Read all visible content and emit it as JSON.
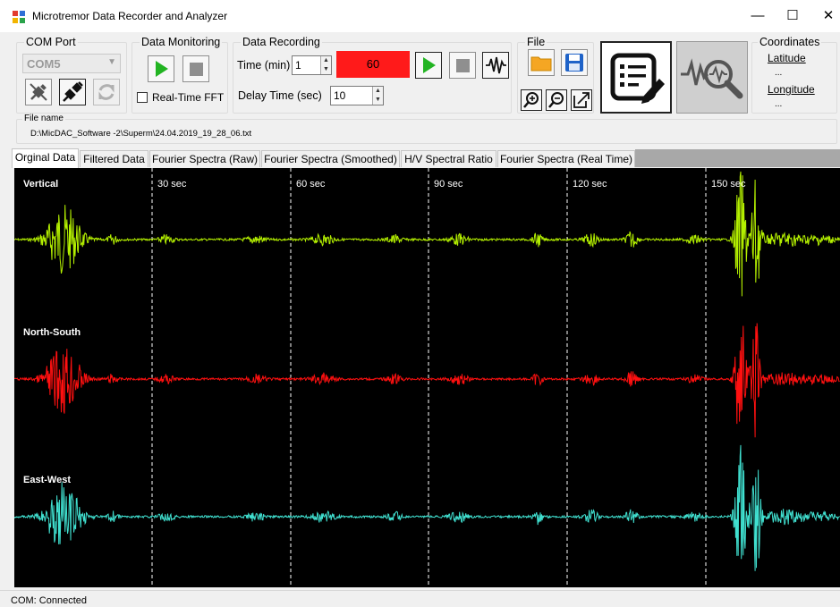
{
  "window": {
    "title": "Microtremor Data Recorder and Analyzer",
    "minimize": "—",
    "maximize": "☐",
    "close": "✕"
  },
  "com_port": {
    "label": "COM Port",
    "selected": "COM5",
    "buttons": [
      "disconnect-plug-icon",
      "connect-plug-icon",
      "refresh-icon"
    ]
  },
  "data_monitoring": {
    "label": "Data Monitoring",
    "realtime_fft_label": "Real-Time FFT",
    "realtime_fft_checked": false
  },
  "data_recording": {
    "label": "Data Recording",
    "time_label": "Time (min)",
    "time_value": "1",
    "countdown": "60",
    "delay_label": "Delay Time (sec)",
    "delay_value": "10"
  },
  "file": {
    "label": "File",
    "name_label": "File name",
    "path": "D:\\MicDAC_Software -2\\Superm\\24.04.2019_19_28_06.txt"
  },
  "coordinates": {
    "label": "Coordinates",
    "latitude_label": "Latitude",
    "latitude_value": "...",
    "longitude_label": "Longitude",
    "longitude_value": "..."
  },
  "tabs": [
    {
      "label": "Orginal Data",
      "active": true
    },
    {
      "label": "Filtered Data",
      "active": false
    },
    {
      "label": "Fourier Spectra (Raw)",
      "active": false
    },
    {
      "label": "Fourier Spectra (Smoothed)",
      "active": false
    },
    {
      "label": "H/V Spectral Ratio",
      "active": false
    },
    {
      "label": "Fourier Spectra (Real Time)",
      "active": false
    }
  ],
  "plot": {
    "time_markers": [
      "30 sec",
      "60 sec",
      "90 sec",
      "120 sec",
      "150 sec"
    ],
    "channels": [
      {
        "name": "Vertical",
        "color": "#b4f000"
      },
      {
        "name": "North-South",
        "color": "#ff1010"
      },
      {
        "name": "East-West",
        "color": "#40e0d0"
      }
    ]
  },
  "status": {
    "text": "COM: Connected"
  },
  "colors": {
    "record_countdown_bg": "#ff1a1a",
    "play_green": "#22b422",
    "plot_bg": "#000000"
  }
}
